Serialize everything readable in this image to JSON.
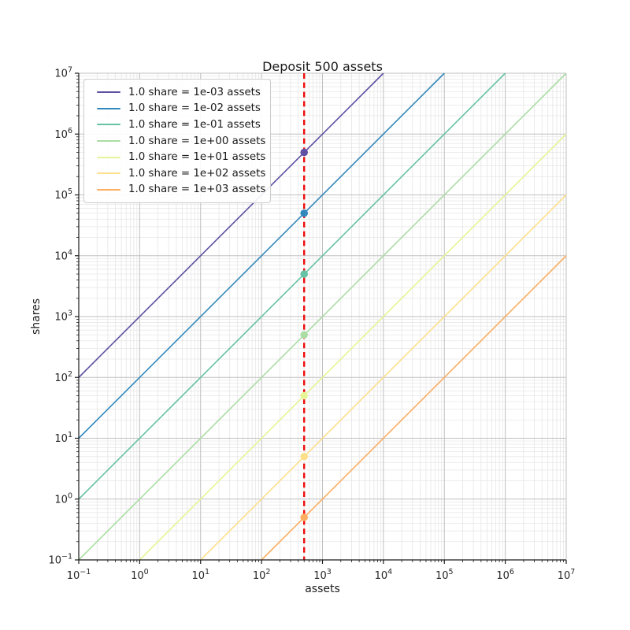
{
  "chart_data": {
    "type": "line",
    "title": "Deposit 500 assets",
    "xlabel": "assets",
    "ylabel": "shares",
    "xscale": "log",
    "yscale": "log",
    "xlim": [
      0.1,
      10000000
    ],
    "ylim": [
      0.1,
      10000000
    ],
    "x_tick_exponents": [
      -1,
      0,
      1,
      2,
      3,
      4,
      5,
      6,
      7
    ],
    "y_tick_exponents": [
      -1,
      0,
      1,
      2,
      3,
      4,
      5,
      6,
      7
    ],
    "grid": "both",
    "legend_location": "upper left",
    "deposit_assets": 500,
    "series": [
      {
        "label": "1.0 share = 1e-03 assets",
        "color": "#5e4fa2",
        "assets_per_share": 0.001,
        "point": {
          "assets": 500,
          "shares": 500000
        }
      },
      {
        "label": "1.0 share = 1e-02 assets",
        "color": "#3288bd",
        "assets_per_share": 0.01,
        "point": {
          "assets": 500,
          "shares": 50000
        }
      },
      {
        "label": "1.0 share = 1e-01 assets",
        "color": "#66c2a5",
        "assets_per_share": 0.1,
        "point": {
          "assets": 500,
          "shares": 5000
        }
      },
      {
        "label": "1.0 share = 1e+00 assets",
        "color": "#abdda4",
        "assets_per_share": 1,
        "point": {
          "assets": 500,
          "shares": 500
        }
      },
      {
        "label": "1.0 share = 1e+01 assets",
        "color": "#e6f598",
        "assets_per_share": 10,
        "point": {
          "assets": 500,
          "shares": 50
        }
      },
      {
        "label": "1.0 share = 1e+02 assets",
        "color": "#fee08b",
        "assets_per_share": 100,
        "point": {
          "assets": 500,
          "shares": 5
        }
      },
      {
        "label": "1.0 share = 1e+03 assets",
        "color": "#fdae61",
        "assets_per_share": 1000,
        "point": {
          "assets": 500,
          "shares": 0.5
        }
      }
    ],
    "vline": {
      "x": 500,
      "color": "#ee0b0b",
      "style": "dashed"
    }
  }
}
